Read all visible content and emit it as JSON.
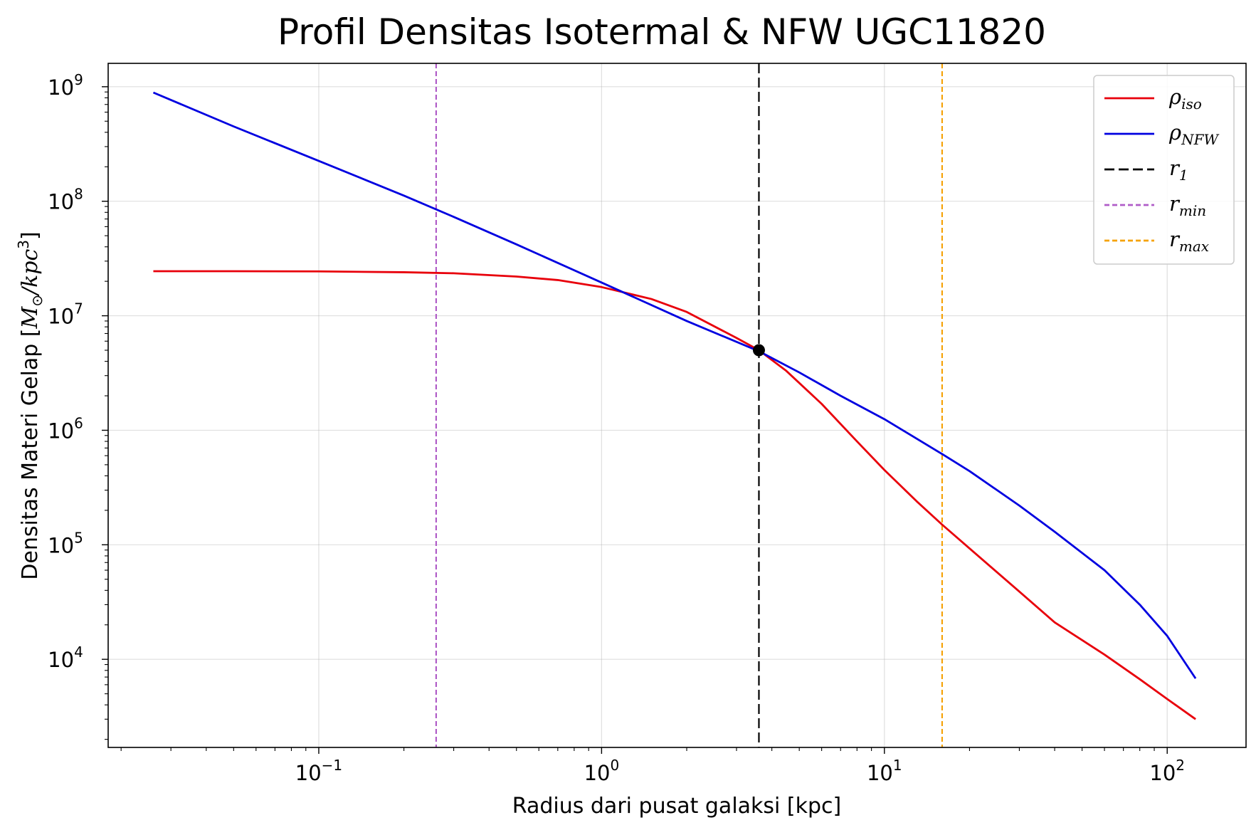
{
  "chart_data": {
    "type": "line",
    "title": "Profil Densitas Isotermal & NFW UGC11820",
    "xlabel": "Radius dari pusat galaksi [kpc]",
    "ylabel": {
      "text": "Densitas Materi Gelap [",
      "m_symbol": "M",
      "sun_subscript": "⊙",
      "per": "/",
      "unit": "kpc",
      "unit_power": "3",
      "close": "]"
    },
    "xscale": "log",
    "yscale": "log",
    "xlim": [
      0.018,
      190
    ],
    "ylim": [
      1700,
      1600000000.0
    ],
    "grid": true,
    "legend_position": "top-right",
    "x_ticks": [
      {
        "base": "10",
        "exp": "−1",
        "value": 0.1
      },
      {
        "base": "10",
        "exp": "0",
        "value": 1
      },
      {
        "base": "10",
        "exp": "1",
        "value": 10
      },
      {
        "base": "10",
        "exp": "2",
        "value": 100
      }
    ],
    "y_ticks": [
      {
        "base": "10",
        "exp": "4",
        "value": 10000
      },
      {
        "base": "10",
        "exp": "5",
        "value": 100000
      },
      {
        "base": "10",
        "exp": "6",
        "value": 1000000
      },
      {
        "base": "10",
        "exp": "7",
        "value": 10000000
      },
      {
        "base": "10",
        "exp": "8",
        "value": 100000000
      },
      {
        "base": "10",
        "exp": "9",
        "value": 1000000000
      }
    ],
    "series": [
      {
        "name": "ρ",
        "subscript": "iso",
        "color": "#e8000b",
        "style": "solid",
        "x": [
          0.026,
          0.05,
          0.1,
          0.2,
          0.3,
          0.5,
          0.7,
          1.0,
          1.5,
          2.0,
          3.0,
          3.6,
          4.5,
          6.0,
          8.0,
          10.0,
          13.0,
          16.0,
          20.0,
          30.0,
          40.0,
          60.0,
          80.0,
          100.0,
          126.0
        ],
        "y": [
          24500000,
          24500000,
          24400000,
          24000000,
          23500000,
          22000000,
          20500000,
          17800000,
          14000000,
          10800000,
          6400000,
          5000000,
          3300000,
          1700000,
          800000,
          450000,
          240000,
          150000,
          93000,
          39000,
          21000,
          11000,
          6700,
          4500,
          3000
        ]
      },
      {
        "name": "ρ",
        "subscript": "NFW",
        "color": "#0000e0",
        "style": "solid",
        "x": [
          0.026,
          0.05,
          0.1,
          0.2,
          0.3,
          0.5,
          1.0,
          2.0,
          3.6,
          5.0,
          7.0,
          10.0,
          16.0,
          20.0,
          30.0,
          40.0,
          60.0,
          80.0,
          100.0,
          126.0
        ],
        "y": [
          890000000,
          450000000,
          225000000,
          112000000,
          73000000,
          42000000,
          19500000,
          9000000,
          4900000,
          3200000,
          2000000,
          1250000,
          620000,
          440000,
          220000,
          130000,
          60000,
          30000,
          16000,
          6800
        ]
      }
    ],
    "vlines": [
      {
        "name": "r",
        "subscript": "1",
        "x": 3.6,
        "color": "#000000",
        "style": "dashed-long"
      },
      {
        "name": "r",
        "subscript": "min",
        "x": 0.26,
        "color": "#b05cc8",
        "style": "dashed"
      },
      {
        "name": "r",
        "subscript": "max",
        "x": 16.0,
        "color": "#f5a30a",
        "style": "dashed"
      }
    ],
    "marker": {
      "x": 3.6,
      "y": 5000000,
      "color": "#000000"
    }
  }
}
